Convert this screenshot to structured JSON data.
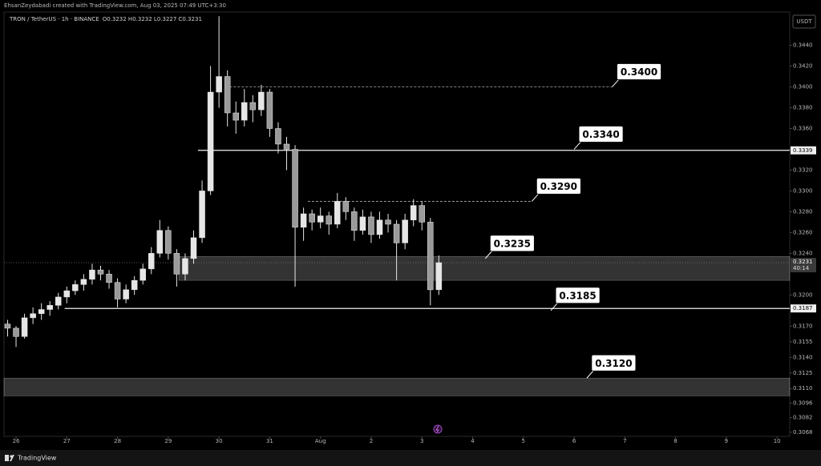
{
  "chart_data": {
    "type": "candlestick",
    "credit": "EhsanZeydabadi created with TradingView.com, Aug 03, 2025 07:49 UTC+3:30",
    "title": "TRON / TetherUS · 1h · BINANCE",
    "ohlc_readout": "O0.3232 H0.3232 L0.3227 C0.3231",
    "currency": "USDT",
    "footer": "TradingView",
    "color": "#e6e6e6",
    "grid": false,
    "x": [
      -4,
      0,
      4,
      8,
      12,
      16,
      20,
      24,
      28,
      32,
      36,
      40,
      44,
      48,
      52,
      56,
      60,
      64,
      68,
      72,
      76,
      80,
      84,
      88,
      92,
      96,
      100,
      104,
      108,
      112,
      116,
      120,
      124,
      128,
      132,
      136,
      140,
      144,
      148,
      152,
      156,
      160,
      164,
      168,
      172,
      176,
      180,
      184,
      188,
      192,
      196,
      200
    ],
    "open": [
      0.3172,
      0.3168,
      0.316,
      0.3178,
      0.3182,
      0.3186,
      0.319,
      0.3198,
      0.3204,
      0.321,
      0.3215,
      0.3224,
      0.322,
      0.3212,
      0.3196,
      0.3205,
      0.3214,
      0.3225,
      0.324,
      0.3262,
      0.324,
      0.322,
      0.3235,
      0.3255,
      0.33,
      0.3395,
      0.341,
      0.3375,
      0.3368,
      0.3385,
      0.3378,
      0.3395,
      0.336,
      0.3345,
      0.334,
      0.3265,
      0.3278,
      0.327,
      0.3276,
      0.3268,
      0.329,
      0.328,
      0.3262,
      0.3275,
      0.3258,
      0.3272,
      0.3268,
      0.325,
      0.3272,
      0.3286,
      0.327,
      0.3205
    ],
    "high": [
      0.3176,
      0.317,
      0.3182,
      0.3188,
      0.3192,
      0.3194,
      0.3202,
      0.3208,
      0.3214,
      0.322,
      0.323,
      0.3228,
      0.3224,
      0.3216,
      0.321,
      0.3218,
      0.323,
      0.3246,
      0.3272,
      0.3266,
      0.3244,
      0.324,
      0.3262,
      0.331,
      0.342,
      0.3468,
      0.3416,
      0.3386,
      0.3398,
      0.3392,
      0.3402,
      0.3398,
      0.3366,
      0.3352,
      0.3344,
      0.3284,
      0.3282,
      0.3284,
      0.328,
      0.3298,
      0.3294,
      0.3284,
      0.3282,
      0.328,
      0.328,
      0.3278,
      0.3272,
      0.3278,
      0.3292,
      0.329,
      0.3274,
      0.3238
    ],
    "low": [
      0.316,
      0.315,
      0.3158,
      0.3172,
      0.3176,
      0.318,
      0.3186,
      0.3192,
      0.32,
      0.3204,
      0.321,
      0.3214,
      0.3206,
      0.3188,
      0.3192,
      0.32,
      0.321,
      0.322,
      0.3236,
      0.3234,
      0.3208,
      0.3214,
      0.323,
      0.325,
      0.3296,
      0.338,
      0.3362,
      0.3355,
      0.3362,
      0.3366,
      0.3372,
      0.3352,
      0.3336,
      0.332,
      0.3208,
      0.3252,
      0.3262,
      0.3264,
      0.3258,
      0.3264,
      0.3272,
      0.3252,
      0.3258,
      0.325,
      0.3254,
      0.326,
      0.3214,
      0.3244,
      0.3266,
      0.3262,
      0.319,
      0.32
    ],
    "close": [
      0.3168,
      0.316,
      0.3178,
      0.3182,
      0.3186,
      0.319,
      0.3198,
      0.3204,
      0.321,
      0.3215,
      0.3224,
      0.322,
      0.3212,
      0.3196,
      0.3205,
      0.3214,
      0.3225,
      0.324,
      0.3262,
      0.324,
      0.322,
      0.3235,
      0.3255,
      0.33,
      0.3395,
      0.341,
      0.3375,
      0.3368,
      0.3385,
      0.3378,
      0.3395,
      0.336,
      0.3345,
      0.334,
      0.3265,
      0.3278,
      0.327,
      0.3276,
      0.3268,
      0.329,
      0.328,
      0.3262,
      0.3275,
      0.3258,
      0.3272,
      0.3268,
      0.325,
      0.3272,
      0.3286,
      0.327,
      0.3205,
      0.3231
    ],
    "xlim": [
      -5.7,
      366
    ],
    "xticks": [
      {
        "value": 0,
        "label": "26"
      },
      {
        "value": 24,
        "label": "27"
      },
      {
        "value": 48,
        "label": "28"
      },
      {
        "value": 72,
        "label": "29"
      },
      {
        "value": 96,
        "label": "30"
      },
      {
        "value": 120,
        "label": "31"
      },
      {
        "value": 144,
        "label": "Aug"
      },
      {
        "value": 168,
        "label": "2"
      },
      {
        "value": 192,
        "label": "3"
      },
      {
        "value": 216,
        "label": "4"
      },
      {
        "value": 240,
        "label": "5"
      },
      {
        "value": 264,
        "label": "6"
      },
      {
        "value": 288,
        "label": "7"
      },
      {
        "value": 312,
        "label": "8"
      },
      {
        "value": 336,
        "label": "9"
      },
      {
        "value": 360,
        "label": "10"
      }
    ],
    "ylim": [
      0.3064,
      0.3472
    ],
    "yticks": [
      {
        "value": 0.344,
        "label": "0.3440"
      },
      {
        "value": 0.342,
        "label": "0.3420"
      },
      {
        "value": 0.34,
        "label": "0.3400"
      },
      {
        "value": 0.338,
        "label": "0.3380"
      },
      {
        "value": 0.336,
        "label": "0.3360"
      },
      {
        "value": 0.334,
        "label": "0.3340"
      },
      {
        "value": 0.332,
        "label": "0.3320"
      },
      {
        "value": 0.33,
        "label": "0.3300"
      },
      {
        "value": 0.328,
        "label": "0.3280"
      },
      {
        "value": 0.326,
        "label": "0.3260"
      },
      {
        "value": 0.324,
        "label": "0.3240"
      },
      {
        "value": 0.32,
        "label": "0.3200"
      },
      {
        "value": 0.317,
        "label": "0.3170"
      },
      {
        "value": 0.3155,
        "label": "0.3155"
      },
      {
        "value": 0.314,
        "label": "0.3140"
      },
      {
        "value": 0.3125,
        "label": "0.3125"
      },
      {
        "value": 0.311,
        "label": "0.3110"
      },
      {
        "value": 0.3096,
        "label": "0.3096"
      },
      {
        "value": 0.3082,
        "label": "0.3082"
      },
      {
        "value": 0.3068,
        "label": "0.3068"
      }
    ],
    "levels": [
      {
        "value": 0.3339,
        "label": "0.3339",
        "x0": 86,
        "style": "solid"
      },
      {
        "value": 0.3187,
        "label": "0.3187",
        "x0": 23,
        "style": "solid"
      },
      {
        "value": 0.34,
        "x0": 101,
        "x1": 282,
        "style": "dashed"
      },
      {
        "value": 0.329,
        "x0": 138,
        "x1": 244,
        "style": "dashed"
      }
    ],
    "zones": [
      {
        "low": 0.3214,
        "high": 0.3237,
        "x0": 77
      },
      {
        "low": 0.3103,
        "high": 0.312
      }
    ],
    "callouts": [
      {
        "value": 0.34,
        "label": "0.3400",
        "x": 282
      },
      {
        "value": 0.334,
        "label": "0.3340",
        "x": 264
      },
      {
        "value": 0.329,
        "label": "0.3290",
        "x": 244
      },
      {
        "value": 0.3235,
        "label": "0.3235",
        "x": 222
      },
      {
        "value": 0.3185,
        "label": "0.3185",
        "x": 253
      },
      {
        "value": 0.312,
        "label": "0.3120",
        "x": 270
      }
    ],
    "last_price": {
      "value": 0.3231,
      "label": "0.3231",
      "countdown": "40:14"
    }
  }
}
